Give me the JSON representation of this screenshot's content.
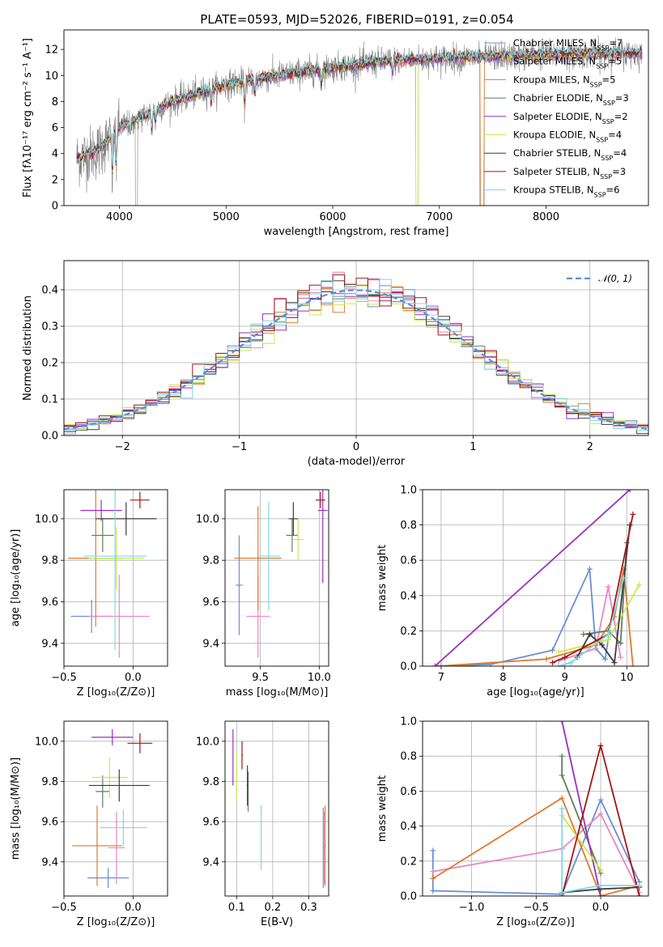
{
  "title": "PLATE=0593, MJD=52026, FIBERID=0191, z=0.054",
  "colors": {
    "Chabrier MILES": "#6a8fd4",
    "Salpeter MILES": "#e887c3",
    "Kroupa MILES": "#e07a2c",
    "Chabrier ELODIE": "#5e7d5e",
    "Salpeter ELODIE": "#9a2fc2",
    "Kroupa ELODIE": "#cbe84a",
    "Chabrier STELIB": "#3c3c3c",
    "Salpeter STELIB": "#a31616",
    "Kroupa STELIB": "#7fd8e3",
    "data": "#808080"
  },
  "chart_data": [
    {
      "id": "spectrum",
      "type": "line",
      "xlabel": "wavelength [Angstrom, rest frame]",
      "ylabel": "Flux [fλ10⁻¹⁷ erg cm⁻² s⁻¹ A⁻¹]",
      "xlim": [
        3480,
        8960
      ],
      "ylim": [
        0,
        13.5
      ],
      "xticks": [
        "4000",
        "5000",
        "6000",
        "7000",
        "8000"
      ],
      "yticks": [
        "0",
        "2",
        "4",
        "6",
        "8",
        "10",
        "12"
      ],
      "x_range": [
        3600,
        8900
      ],
      "legend": [
        {
          "label": "Chabrier MILES, N",
          "sub": "SSP",
          "eq": "=7"
        },
        {
          "label": "Salpeter MILES, N",
          "sub": "SSP",
          "eq": "=5"
        },
        {
          "label": "Kroupa MILES, N",
          "sub": "SSP",
          "eq": "=5"
        },
        {
          "label": "Chabrier ELODIE, N",
          "sub": "SSP",
          "eq": "=3"
        },
        {
          "label": "Salpeter ELODIE, N",
          "sub": "SSP",
          "eq": "=2"
        },
        {
          "label": "Kroupa ELODIE, N",
          "sub": "SSP",
          "eq": "=4"
        },
        {
          "label": "Chabrier STELIB, N",
          "sub": "SSP",
          "eq": "=4"
        },
        {
          "label": "Salpeter STELIB, N",
          "sub": "SSP",
          "eq": "=3"
        },
        {
          "label": "Kroupa STELIB, N",
          "sub": "SSP",
          "eq": "=6"
        }
      ],
      "continuum_anchors": [
        [
          3600,
          3.6
        ],
        [
          3800,
          4.2
        ],
        [
          4000,
          6.0
        ],
        [
          4200,
          6.8
        ],
        [
          4500,
          8.0
        ],
        [
          5000,
          9.3
        ],
        [
          5500,
          10.0
        ],
        [
          6000,
          10.6
        ],
        [
          6500,
          11.1
        ],
        [
          7000,
          11.3
        ],
        [
          7400,
          11.4
        ],
        [
          8000,
          11.6
        ],
        [
          8900,
          11.7
        ]
      ],
      "absorption_lines": [
        [
          3934,
          3.2
        ],
        [
          3969,
          3.0
        ],
        [
          4102,
          1.0
        ],
        [
          4304,
          1.5
        ],
        [
          4340,
          1.0
        ],
        [
          4861,
          1.0
        ],
        [
          5175,
          2.0
        ],
        [
          5270,
          1.2
        ],
        [
          5893,
          1.2
        ],
        [
          6563,
          1.0
        ]
      ],
      "gaps": [
        [
          4150,
          4170
        ],
        [
          6780,
          6800
        ],
        [
          7380,
          7420
        ]
      ]
    },
    {
      "id": "residuals",
      "type": "histogram",
      "xlabel": "(data-model)/error",
      "ylabel": "Normed distribution",
      "xlim": [
        -2.5,
        2.5
      ],
      "ylim": [
        0,
        0.48
      ],
      "xticks": [
        "−2",
        "−1",
        "0",
        "1",
        "2"
      ],
      "yticks": [
        "0.0",
        "0.1",
        "0.2",
        "0.3",
        "0.4"
      ],
      "bin_width": 0.1,
      "reference_curve": {
        "label": "𝒩(0, 1)",
        "mean": 0,
        "sigma": 1
      }
    },
    {
      "id": "age-vs-Z",
      "type": "errorbar",
      "xlabel": "Z [log₁₀(Z/Z⊙)]",
      "ylabel": "age  [log₁₀(age/yr)]",
      "xlim": [
        -0.5,
        0.25
      ],
      "ylim": [
        9.29,
        10.14
      ],
      "xticks": [
        "−0.5",
        "0.0"
      ],
      "yticks": [
        "9.4",
        "9.6",
        "9.8",
        "10.0"
      ],
      "points": [
        {
          "model": "Chabrier MILES",
          "x": -0.3,
          "y": 9.53,
          "xerr": 0.15,
          "yerr": 0.08
        },
        {
          "model": "Salpeter MILES",
          "x": -0.1,
          "y": 9.53,
          "xerr": 0.22,
          "yerr": 0.2
        },
        {
          "model": "Kroupa MILES",
          "x": -0.27,
          "y": 9.81,
          "xerr": 0.2,
          "yerr": 0.33
        },
        {
          "model": "Chabrier ELODIE",
          "x": -0.22,
          "y": 9.92,
          "xerr": 0.08,
          "yerr": 0.08
        },
        {
          "model": "Salpeter ELODIE",
          "x": -0.23,
          "y": 10.04,
          "xerr": 0.15,
          "yerr": 0.05
        },
        {
          "model": "Kroupa ELODIE",
          "x": -0.12,
          "y": 9.81,
          "xerr": 0.2,
          "yerr": 0.15
        },
        {
          "model": "Chabrier STELIB",
          "x": -0.05,
          "y": 10.0,
          "xerr": 0.22,
          "yerr": 0.08
        },
        {
          "model": "Salpeter STELIB",
          "x": 0.05,
          "y": 10.09,
          "xerr": 0.07,
          "yerr": 0.04
        },
        {
          "model": "Kroupa STELIB",
          "x": -0.13,
          "y": 9.82,
          "xerr": 0.23,
          "yerr": 0.45
        }
      ]
    },
    {
      "id": "age-vs-mass",
      "type": "errorbar",
      "xlabel": "mass [log₁₀(M/M⊙)]",
      "ylabel": "",
      "xlim": [
        9.2,
        10.08
      ],
      "ylim": [
        9.29,
        10.14
      ],
      "xticks": [
        "9.5",
        "10.0"
      ],
      "yticks": [
        "9.4",
        "9.6",
        "9.8",
        "10.0"
      ],
      "points": [
        {
          "model": "Chabrier MILES",
          "x": 9.32,
          "y": 9.68,
          "xerr": 0.03,
          "yerr": 0.24
        },
        {
          "model": "Salpeter MILES",
          "x": 9.48,
          "y": 9.53,
          "xerr": 0.1,
          "yerr": 0.2
        },
        {
          "model": "Kroupa MILES",
          "x": 9.48,
          "y": 9.81,
          "xerr": 0.2,
          "yerr": 0.25
        },
        {
          "model": "Chabrier ELODIE",
          "x": 9.77,
          "y": 9.92,
          "xerr": 0.05,
          "yerr": 0.08
        },
        {
          "model": "Salpeter ELODIE",
          "x": 10.03,
          "y": 10.04,
          "xerr": 0.04,
          "yerr": 0.35
        },
        {
          "model": "Kroupa ELODIE",
          "x": 9.82,
          "y": 9.9,
          "xerr": 0.05,
          "yerr": 0.1
        },
        {
          "model": "Chabrier STELIB",
          "x": 9.78,
          "y": 10.0,
          "xerr": 0.04,
          "yerr": 0.08
        },
        {
          "model": "Salpeter STELIB",
          "x": 10.01,
          "y": 10.09,
          "xerr": 0.04,
          "yerr": 0.04
        },
        {
          "model": "Kroupa STELIB",
          "x": 9.57,
          "y": 9.82,
          "xerr": 0.1,
          "yerr": 0.26
        }
      ]
    },
    {
      "id": "weight-vs-age",
      "type": "line",
      "xlabel": "age  [log₁₀(age/yr)]",
      "ylabel": "mass weight",
      "xlim": [
        6.7,
        10.35
      ],
      "ylim": [
        0,
        1.0
      ],
      "xticks": [
        "7",
        "8",
        "9",
        "10"
      ],
      "yticks": [
        "0.0",
        "0.2",
        "0.4",
        "0.6",
        "0.8",
        "1.0"
      ],
      "series": [
        {
          "model": "Chabrier MILES",
          "x": [
            7.0,
            7.8,
            8.8,
            9.4,
            9.5,
            9.65,
            9.7
          ],
          "y": [
            0.0,
            0.01,
            0.09,
            0.55,
            0.1,
            0.04,
            0.15
          ]
        },
        {
          "model": "Salpeter MILES",
          "x": [
            8.9,
            9.5,
            9.7,
            9.9
          ],
          "y": [
            0.03,
            0.1,
            0.45,
            0.05
          ]
        },
        {
          "model": "Kroupa MILES",
          "x": [
            6.95,
            8.7,
            9.5,
            9.8,
            9.95,
            10.1
          ],
          "y": [
            0.0,
            0.04,
            0.12,
            0.28,
            0.55,
            0.0
          ]
        },
        {
          "model": "Chabrier ELODIE",
          "x": [
            9.3,
            9.7,
            9.9,
            10.0
          ],
          "y": [
            0.18,
            0.2,
            0.13,
            0.7
          ]
        },
        {
          "model": "Salpeter ELODIE",
          "x": [
            6.9,
            10.05
          ],
          "y": [
            0.0,
            1.0
          ]
        },
        {
          "model": "Kroupa ELODIE",
          "x": [
            8.9,
            9.7,
            10.2
          ],
          "y": [
            0.08,
            0.15,
            0.46
          ]
        },
        {
          "model": "Chabrier STELIB",
          "x": [
            9.2,
            9.4,
            9.6,
            9.8,
            10.05
          ],
          "y": [
            0.05,
            0.18,
            0.12,
            0.02,
            0.8
          ]
        },
        {
          "model": "Salpeter STELIB",
          "x": [
            8.8,
            9.0,
            9.7,
            10.1
          ],
          "y": [
            0.02,
            0.05,
            0.18,
            0.86
          ]
        },
        {
          "model": "Kroupa STELIB",
          "x": [
            8.9,
            9.1,
            9.7,
            9.95
          ],
          "y": [
            0.0,
            0.02,
            0.18,
            0.5
          ]
        }
      ]
    },
    {
      "id": "mass-vs-Z",
      "type": "errorbar",
      "xlabel": "Z [log₁₀(Z/Z⊙)]",
      "ylabel": "mass [log₁₀(M/M⊙)]",
      "xlim": [
        -0.5,
        0.25
      ],
      "ylim": [
        9.23,
        10.1
      ],
      "xticks": [
        "−0.5",
        "0.0"
      ],
      "yticks": [
        "9.4",
        "9.6",
        "9.8",
        "10.0"
      ],
      "points": [
        {
          "model": "Chabrier MILES",
          "x": -0.18,
          "y": 9.32,
          "xerr": 0.15,
          "yerr": 0.05
        },
        {
          "model": "Salpeter MILES",
          "x": -0.12,
          "y": 9.47,
          "xerr": 0.06,
          "yerr": 0.18
        },
        {
          "model": "Kroupa MILES",
          "x": -0.26,
          "y": 9.48,
          "xerr": 0.18,
          "yerr": 0.2
        },
        {
          "model": "Chabrier ELODIE",
          "x": -0.22,
          "y": 9.75,
          "xerr": 0.05,
          "yerr": 0.08
        },
        {
          "model": "Salpeter ELODIE",
          "x": -0.15,
          "y": 10.02,
          "xerr": 0.15,
          "yerr": 0.04
        },
        {
          "model": "Kroupa ELODIE",
          "x": -0.17,
          "y": 9.82,
          "xerr": 0.13,
          "yerr": 0.1
        },
        {
          "model": "Chabrier STELIB",
          "x": -0.1,
          "y": 9.78,
          "xerr": 0.22,
          "yerr": 0.08
        },
        {
          "model": "Salpeter STELIB",
          "x": 0.05,
          "y": 9.99,
          "xerr": 0.09,
          "yerr": 0.05
        },
        {
          "model": "Kroupa STELIB",
          "x": -0.07,
          "y": 9.57,
          "xerr": 0.17,
          "yerr": 0.09
        }
      ]
    },
    {
      "id": "mass-vs-EBV",
      "type": "errorbar",
      "xlabel": "E(B-V)",
      "ylabel": "",
      "xlim": [
        0.068,
        0.355
      ],
      "ylim": [
        9.23,
        10.1
      ],
      "xticks": [
        "0.1",
        "0.2",
        "0.3"
      ],
      "yticks": [
        "9.4",
        "9.6",
        "9.8",
        "10.0"
      ],
      "points": [
        {
          "model": "Chabrier MILES",
          "x": 0.34,
          "y": 9.47,
          "xerr": 0.002,
          "yerr": 0.2
        },
        {
          "model": "Salpeter MILES",
          "x": 0.342,
          "y": 9.47,
          "xerr": 0.002,
          "yerr": 0.18
        },
        {
          "model": "Kroupa MILES",
          "x": 0.345,
          "y": 9.48,
          "xerr": 0.002,
          "yerr": 0.2
        },
        {
          "model": "Chabrier ELODIE",
          "x": 0.132,
          "y": 9.75,
          "xerr": 0.001,
          "yerr": 0.1
        },
        {
          "model": "Salpeter ELODIE",
          "x": 0.09,
          "y": 9.92,
          "xerr": 0.001,
          "yerr": 0.14
        },
        {
          "model": "Kroupa ELODIE",
          "x": 0.1,
          "y": 9.82,
          "xerr": 0.001,
          "yerr": 0.12
        },
        {
          "model": "Chabrier STELIB",
          "x": 0.13,
          "y": 9.78,
          "xerr": 0.002,
          "yerr": 0.1
        },
        {
          "model": "Salpeter STELIB",
          "x": 0.115,
          "y": 9.93,
          "xerr": 0.002,
          "yerr": 0.07
        },
        {
          "model": "Kroupa STELIB",
          "x": 0.168,
          "y": 9.52,
          "xerr": 0.002,
          "yerr": 0.16
        }
      ]
    },
    {
      "id": "weight-vs-Z",
      "type": "line",
      "xlabel": "Z [log₁₀(Z/Z⊙)]",
      "ylabel": "mass weight",
      "xlim": [
        -1.38,
        0.37
      ],
      "ylim": [
        0,
        1.0
      ],
      "xticks": [
        "−1.0",
        "−0.5",
        "0.0"
      ],
      "yticks": [
        "0.0",
        "0.2",
        "0.4",
        "0.6",
        "0.8",
        "1.0"
      ],
      "series": [
        {
          "model": "Chabrier MILES",
          "x": [
            -1.3,
            -1.3,
            -0.3,
            0.0,
            0.3
          ],
          "y": [
            0.26,
            0.03,
            0.01,
            0.55,
            0.08
          ]
        },
        {
          "model": "Salpeter MILES",
          "x": [
            -1.3,
            -0.3,
            0.0,
            0.3
          ],
          "y": [
            0.14,
            0.27,
            0.47,
            0.02
          ]
        },
        {
          "model": "Kroupa MILES",
          "x": [
            -1.3,
            -0.3,
            0.0,
            0.3
          ],
          "y": [
            0.1,
            0.56,
            0.0,
            0.06
          ]
        },
        {
          "model": "Chabrier ELODIE",
          "x": [
            -0.3,
            -0.3,
            0.0
          ],
          "y": [
            0.8,
            0.69,
            0.13
          ]
        },
        {
          "model": "Salpeter ELODIE",
          "x": [
            -0.3,
            0.0
          ],
          "y": [
            1.0,
            0.0
          ]
        },
        {
          "model": "Kroupa ELODIE",
          "x": [
            -0.3,
            0.0
          ],
          "y": [
            0.46,
            0.15
          ]
        },
        {
          "model": "Chabrier STELIB",
          "x": [
            -0.3,
            0.0,
            0.3
          ],
          "y": [
            0.02,
            0.04,
            0.05
          ]
        },
        {
          "model": "Salpeter STELIB",
          "x": [
            -0.3,
            0.0,
            0.3
          ],
          "y": [
            0.0,
            0.86,
            0.0
          ]
        },
        {
          "model": "Kroupa STELIB",
          "x": [
            -0.3,
            -0.3,
            0.0,
            0.3
          ],
          "y": [
            0.5,
            0.02,
            0.06,
            0.06
          ]
        }
      ]
    }
  ]
}
